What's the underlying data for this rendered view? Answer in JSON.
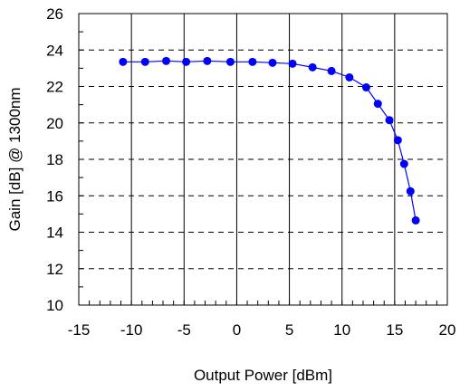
{
  "chart_data": {
    "type": "line",
    "title": "",
    "xlabel": "Output Power [dBm]",
    "ylabel": "Gain [dB]  @ 1300nm",
    "xlim": [
      -15,
      20
    ],
    "ylim": [
      10,
      26
    ],
    "xticks": [
      -15,
      -10,
      -5,
      0,
      5,
      10,
      15,
      20
    ],
    "yticks": [
      10,
      12,
      14,
      16,
      18,
      20,
      22,
      24,
      26
    ],
    "grid": {
      "vertical": "solid",
      "horizontal": "dashed"
    },
    "legend": "none",
    "series": [
      {
        "color": "#0000ff",
        "marker": "circle",
        "x": [
          -10.8,
          -8.7,
          -6.7,
          -4.8,
          -2.8,
          -0.6,
          1.5,
          3.4,
          5.3,
          7.2,
          9.0,
          10.7,
          12.3,
          13.4,
          14.5,
          15.3,
          15.9,
          16.5,
          17.0
        ],
        "y": [
          23.35,
          23.35,
          23.4,
          23.35,
          23.4,
          23.35,
          23.35,
          23.3,
          23.25,
          23.05,
          22.85,
          22.5,
          21.95,
          21.05,
          20.15,
          19.05,
          17.75,
          16.25,
          14.65
        ]
      }
    ]
  }
}
